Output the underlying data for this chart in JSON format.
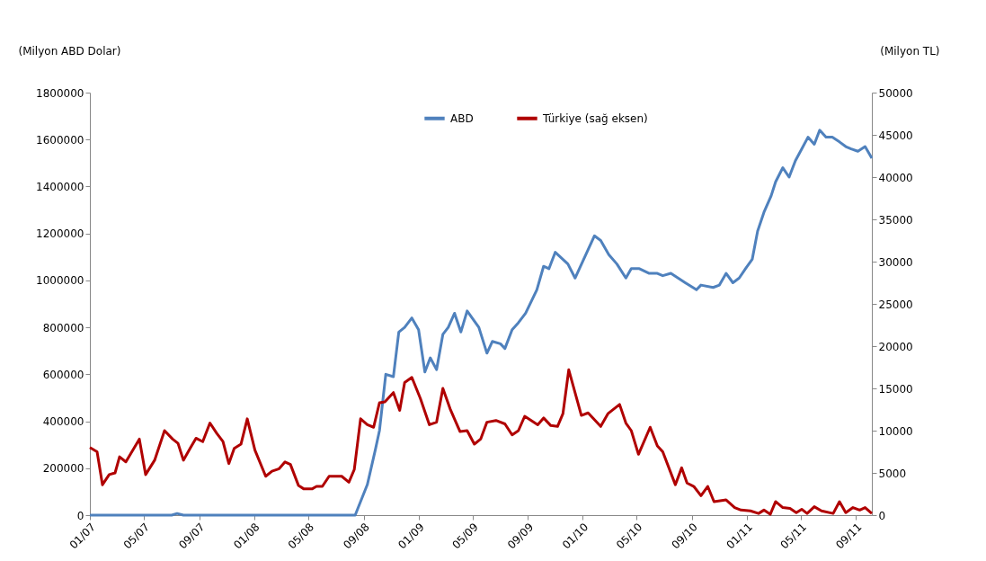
{
  "chart_data": {
    "type": "line",
    "ylabel": "(Milyon ABD Dolar)",
    "y2label": "(Milyon TL)",
    "xlim": [
      "2007-01-01",
      "2011-10-06"
    ],
    "xticks": [
      {
        "value": "2007-01-01",
        "label": "01/07"
      },
      {
        "value": "2007-05-01",
        "label": "05/07"
      },
      {
        "value": "2007-09-01",
        "label": "09/07"
      },
      {
        "value": "2008-01-01",
        "label": "01/08"
      },
      {
        "value": "2008-05-01",
        "label": "05/08"
      },
      {
        "value": "2008-09-01",
        "label": "09/08"
      },
      {
        "value": "2009-01-01",
        "label": "01/09"
      },
      {
        "value": "2009-05-01",
        "label": "05/09"
      },
      {
        "value": "2009-09-01",
        "label": "09/09"
      },
      {
        "value": "2010-01-01",
        "label": "01/10"
      },
      {
        "value": "2010-05-01",
        "label": "05/10"
      },
      {
        "value": "2010-09-01",
        "label": "09/10"
      },
      {
        "value": "2011-01-01",
        "label": "01/11"
      },
      {
        "value": "2011-05-01",
        "label": "05/11"
      },
      {
        "value": "2011-09-01",
        "label": "09/11"
      }
    ],
    "ylim": [
      0,
      1800000
    ],
    "yticks": [
      0,
      200000,
      400000,
      600000,
      800000,
      1000000,
      1200000,
      1400000,
      1600000,
      1800000
    ],
    "y2lim": [
      0,
      50000
    ],
    "y2ticks": [
      0,
      5000,
      10000,
      15000,
      20000,
      25000,
      30000,
      35000,
      40000,
      45000,
      50000
    ],
    "legend": "top",
    "grid": false,
    "line_style": "solid",
    "series": [
      {
        "name": "ABD",
        "color": "#4f81bd",
        "x": [
          "2007-01-01",
          "2007-07-02",
          "2007-07-14",
          "2007-07-28",
          "2008-08-13",
          "2008-09-09",
          "2008-09-27",
          "2008-10-06",
          "2008-10-20",
          "2008-11-06",
          "2008-11-18",
          "2008-12-01",
          "2008-12-17",
          "2009-01-01",
          "2009-01-15",
          "2009-01-27",
          "2009-02-10",
          "2009-02-24",
          "2009-03-08",
          "2009-03-22",
          "2009-04-05",
          "2009-04-19",
          "2009-05-15",
          "2009-06-02",
          "2009-06-14",
          "2009-07-02",
          "2009-07-12",
          "2009-07-28",
          "2009-08-11",
          "2009-08-27",
          "2009-09-21",
          "2009-10-06",
          "2009-10-18",
          "2009-11-01",
          "2009-11-29",
          "2009-12-15",
          "2010-01-27",
          "2010-02-10",
          "2010-02-28",
          "2010-03-18",
          "2010-04-07",
          "2010-04-19",
          "2010-05-07",
          "2010-05-29",
          "2010-06-16",
          "2010-06-28",
          "2010-07-16",
          "2010-08-01",
          "2010-08-17",
          "2010-09-11",
          "2010-09-21",
          "2010-10-18",
          "2010-11-01",
          "2010-11-16",
          "2010-12-01",
          "2010-12-15",
          "2010-12-29",
          "2011-01-13",
          "2011-01-25",
          "2011-02-08",
          "2011-02-24",
          "2011-03-06",
          "2011-03-22",
          "2011-04-05",
          "2011-04-19",
          "2011-05-03",
          "2011-05-17",
          "2011-05-31",
          "2011-06-12",
          "2011-06-26",
          "2011-07-10",
          "2011-07-26",
          "2011-08-09",
          "2011-08-21",
          "2011-09-05",
          "2011-09-21",
          "2011-10-06"
        ],
        "values": [
          0,
          0,
          7000,
          0,
          0,
          130000,
          280000,
          360000,
          600000,
          590000,
          780000,
          800000,
          840000,
          790000,
          610000,
          670000,
          620000,
          770000,
          800000,
          860000,
          780000,
          870000,
          800000,
          690000,
          740000,
          730000,
          710000,
          790000,
          820000,
          860000,
          960000,
          1060000,
          1050000,
          1120000,
          1070000,
          1010000,
          1190000,
          1170000,
          1110000,
          1070000,
          1010000,
          1050000,
          1050000,
          1030000,
          1030000,
          1020000,
          1030000,
          1010000,
          990000,
          960000,
          980000,
          970000,
          980000,
          1030000,
          990000,
          1010000,
          1050000,
          1090000,
          1210000,
          1290000,
          1360000,
          1420000,
          1480000,
          1440000,
          1510000,
          1560000,
          1610000,
          1580000,
          1640000,
          1610000,
          1610000,
          1590000,
          1570000,
          1560000,
          1550000,
          1570000,
          1520000
        ]
      },
      {
        "name": "Türkiye (sağ eksen)",
        "color": "#b00000",
        "axis": "y2",
        "x": [
          "2007-01-01",
          "2007-01-17",
          "2007-01-29",
          "2007-02-13",
          "2007-02-26",
          "2007-03-08",
          "2007-03-22",
          "2007-04-21",
          "2007-05-05",
          "2007-05-25",
          "2007-06-16",
          "2007-07-04",
          "2007-07-16",
          "2007-07-28",
          "2007-08-13",
          "2007-08-25",
          "2007-09-09",
          "2007-09-25",
          "2007-10-10",
          "2007-10-24",
          "2007-11-06",
          "2007-11-18",
          "2007-12-03",
          "2007-12-17",
          "2008-01-03",
          "2008-01-27",
          "2008-02-10",
          "2008-02-26",
          "2008-03-10",
          "2008-03-22",
          "2008-04-09",
          "2008-04-21",
          "2008-05-09",
          "2008-05-19",
          "2008-06-01",
          "2008-06-16",
          "2008-07-14",
          "2008-07-30",
          "2008-08-11",
          "2008-08-25",
          "2008-09-09",
          "2008-09-23",
          "2008-10-06",
          "2008-10-18",
          "2008-11-06",
          "2008-11-20",
          "2008-12-01",
          "2008-12-17",
          "2009-01-05",
          "2009-01-25",
          "2009-02-10",
          "2009-02-24",
          "2009-03-12",
          "2009-04-03",
          "2009-04-19",
          "2009-05-05",
          "2009-05-19",
          "2009-06-02",
          "2009-06-22",
          "2009-07-12",
          "2009-07-28",
          "2009-08-11",
          "2009-08-25",
          "2009-09-23",
          "2009-10-06",
          "2009-10-22",
          "2009-11-06",
          "2009-11-18",
          "2009-12-01",
          "2009-12-29",
          "2010-01-13",
          "2010-02-10",
          "2010-02-26",
          "2010-03-24",
          "2010-04-07",
          "2010-04-19",
          "2010-05-05",
          "2010-05-31",
          "2010-06-16",
          "2010-06-28",
          "2010-07-26",
          "2010-08-09",
          "2010-08-21",
          "2010-09-05",
          "2010-09-21",
          "2010-10-06",
          "2010-10-20",
          "2010-11-16",
          "2010-12-05",
          "2010-12-19",
          "2011-01-09",
          "2011-01-27",
          "2011-02-08",
          "2011-02-22",
          "2011-03-06",
          "2011-03-22",
          "2011-04-07",
          "2011-04-21",
          "2011-05-03",
          "2011-05-15",
          "2011-05-31",
          "2011-06-16",
          "2011-07-12",
          "2011-07-26",
          "2011-08-09",
          "2011-08-25",
          "2011-09-09",
          "2011-09-21",
          "2011-10-06"
        ],
        "values": [
          8000,
          7500,
          3600,
          4800,
          5000,
          6900,
          6300,
          9000,
          4800,
          6500,
          10000,
          9000,
          8500,
          6500,
          8000,
          9100,
          8700,
          10900,
          9700,
          8700,
          6100,
          7900,
          8400,
          11400,
          7700,
          4600,
          5200,
          5500,
          6300,
          6000,
          3500,
          3100,
          3100,
          3400,
          3400,
          4600,
          4600,
          3900,
          5400,
          11400,
          10700,
          10400,
          13300,
          13400,
          14500,
          12400,
          15700,
          16300,
          13800,
          10700,
          11000,
          15000,
          12600,
          9900,
          10000,
          8400,
          9000,
          11000,
          11200,
          10800,
          9500,
          10000,
          11700,
          10700,
          11500,
          10600,
          10500,
          12000,
          17200,
          11800,
          12100,
          10500,
          12000,
          13100,
          10900,
          10000,
          7200,
          10400,
          8200,
          7500,
          3600,
          5600,
          3800,
          3400,
          2300,
          3400,
          1600,
          1800,
          900,
          600,
          500,
          200,
          600,
          100,
          1600,
          900,
          800,
          300,
          700,
          200,
          1000,
          500,
          200,
          1600,
          300,
          900,
          600,
          900,
          200
        ]
      }
    ]
  }
}
